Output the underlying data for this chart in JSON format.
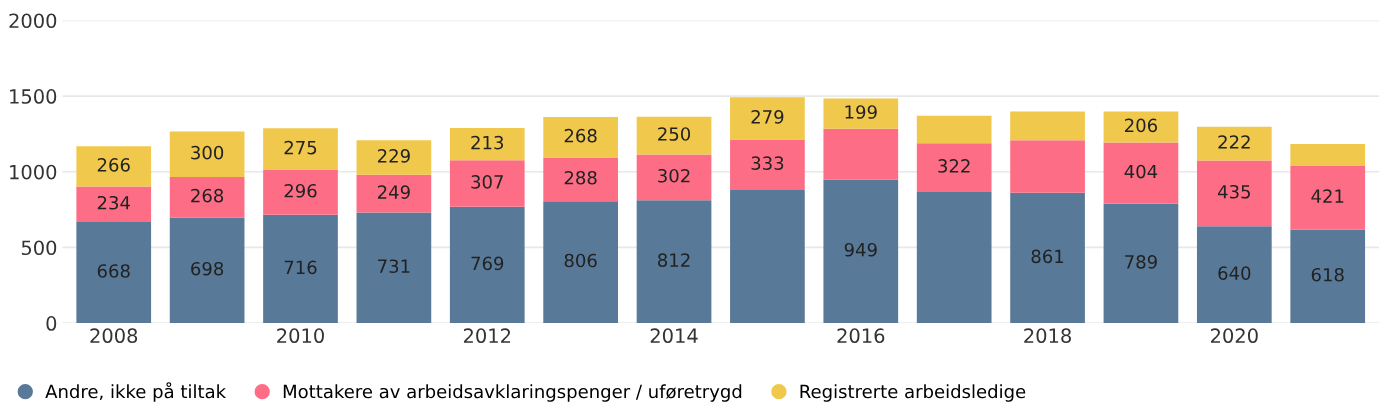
{
  "chart_data": {
    "type": "bar",
    "stacked": true,
    "categories": [
      "2008",
      null,
      "2010",
      null,
      "2012",
      null,
      "2014",
      null,
      "2016",
      null,
      "2018",
      null,
      "2020",
      null
    ],
    "series": [
      {
        "name": "Andre, ikke på tiltak",
        "color": "#587a98",
        "values": [
          668,
          698,
          716,
          731,
          769,
          806,
          812,
          880,
          949,
          867,
          861,
          789,
          640,
          618
        ],
        "value_labels": [
          "668",
          "698",
          "716",
          "731",
          "769",
          "806",
          "812",
          null,
          "949",
          null,
          "861",
          "789",
          "640",
          "618"
        ]
      },
      {
        "name": "Mottakere av arbeidsavklaringspenger / uføretrygd",
        "color": "#fd6e86",
        "values": [
          234,
          268,
          296,
          249,
          307,
          288,
          302,
          333,
          336,
          322,
          348,
          404,
          435,
          421
        ],
        "value_labels": [
          "234",
          "268",
          "296",
          "249",
          "307",
          "288",
          "302",
          "333",
          null,
          "322",
          null,
          "404",
          "435",
          "421"
        ]
      },
      {
        "name": "Registrerte arbeidsledige",
        "color": "#f0c84b",
        "values": [
          266,
          300,
          275,
          229,
          213,
          268,
          250,
          279,
          199,
          182,
          189,
          206,
          222,
          145
        ],
        "value_labels": [
          "266",
          "300",
          "275",
          "229",
          "213",
          "268",
          "250",
          "279",
          "199",
          null,
          null,
          "206",
          "222",
          null
        ]
      }
    ],
    "ylim": [
      0,
      2000
    ],
    "yticks": [
      0,
      500,
      1000,
      1500,
      2000
    ],
    "grid": "y",
    "legend": "bottom left",
    "marker": "circle"
  }
}
